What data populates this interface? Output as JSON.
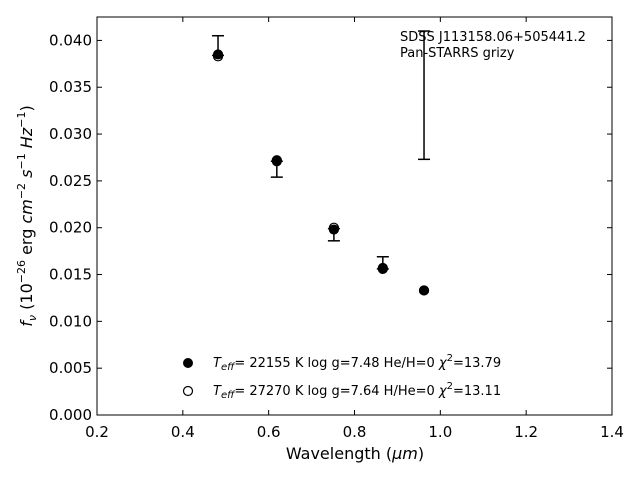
{
  "chart_data": {
    "type": "scatter",
    "xlabel_main": "Wavelength (",
    "xlabel_unit": "μm",
    "xlabel_close": ")",
    "ylabel": {
      "f": "f",
      "nu": "ν",
      "open": " (10",
      "exp": "−26",
      "erg": " erg ",
      "cm": "cm",
      "cm_exp": "−2",
      "s": "s",
      "s_exp": "−1",
      "hz": "Hz",
      "hz_exp": "−1",
      "close": ")"
    },
    "xlim": [
      0.2,
      1.4
    ],
    "ylim": [
      0.0,
      0.0425
    ],
    "x_ticks": [
      "0.2",
      "0.4",
      "0.6",
      "0.8",
      "1.0",
      "1.2",
      "1.4"
    ],
    "y_ticks": [
      "0.000",
      "0.005",
      "0.010",
      "0.015",
      "0.020",
      "0.025",
      "0.030",
      "0.035",
      "0.040"
    ],
    "grid": false,
    "annotation": [
      "SDSS J113158.06+505441.2",
      "Pan-STARRS grizy"
    ],
    "observed": [
      {
        "x": 0.482,
        "y": 0.0384,
        "err_low": 0.0384,
        "err_high": 0.0405
      },
      {
        "x": 0.619,
        "y": 0.0271,
        "err_low": 0.0254,
        "err_high": 0.0271
      },
      {
        "x": 0.752,
        "y": 0.0199,
        "err_low": 0.0186,
        "err_high": 0.0199
      },
      {
        "x": 0.866,
        "y": 0.0156,
        "err_low": 0.0156,
        "err_high": 0.0169
      },
      {
        "x": 0.962,
        "y": null,
        "err_low": 0.0273,
        "err_high": 0.041
      }
    ],
    "series": [
      {
        "marker": "filled",
        "label_parts": [
          "T",
          "eff",
          "= 22155 K  log g=7.48  He/H=0  ",
          "χ",
          "2",
          "=13.79"
        ],
        "x": [
          0.482,
          0.619,
          0.752,
          0.866,
          0.962
        ],
        "y": [
          0.0385,
          0.0271,
          0.0198,
          0.0156,
          0.0133
        ]
      },
      {
        "marker": "open",
        "label_parts": [
          "T",
          "eff",
          "= 27270 K  log g=7.64  H/He=0  ",
          "χ",
          "2",
          "=13.11"
        ],
        "x": [
          0.482,
          0.619,
          0.752,
          0.866,
          0.962
        ],
        "y": [
          0.0383,
          0.0272,
          0.02,
          0.0157,
          0.0133
        ]
      }
    ],
    "legend_placement": "lower-center"
  }
}
